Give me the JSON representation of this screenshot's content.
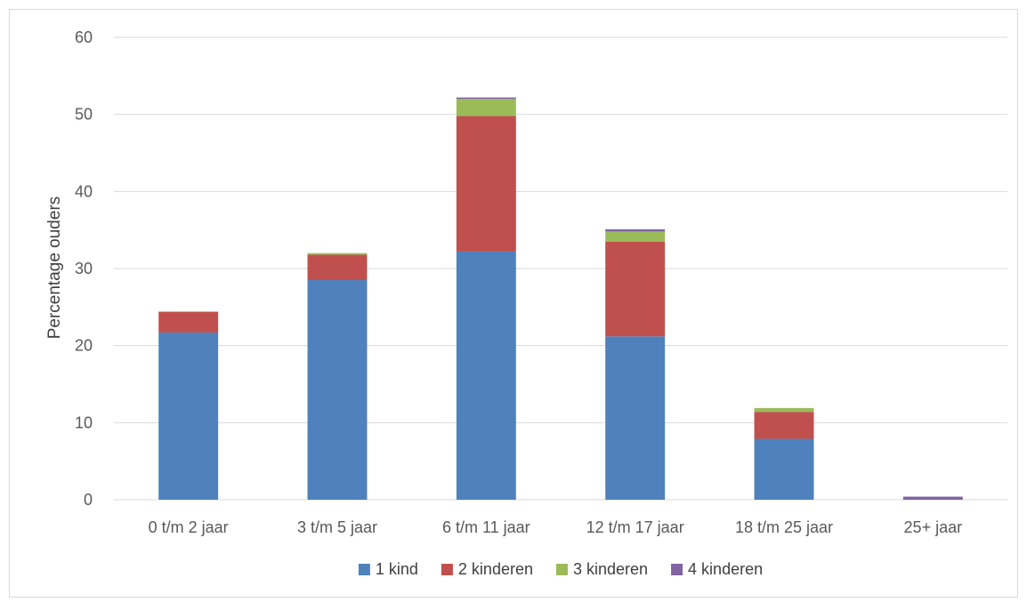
{
  "chart_data": {
    "type": "bar",
    "stacked": true,
    "title": "",
    "xlabel": "",
    "ylabel": "Percentage ouders",
    "ylim": [
      0,
      60
    ],
    "yticks": [
      0,
      10,
      20,
      30,
      40,
      50,
      60
    ],
    "grid": true,
    "legend_position": "bottom",
    "categories": [
      "0 t/m 2 jaar",
      "3 t/m 5 jaar",
      "6 t/m 11 jaar",
      "12 t/m 17 jaar",
      "18 t/m 25 jaar",
      "25+ jaar"
    ],
    "series": [
      {
        "name": "1 kind",
        "color": "#4f81bd",
        "values": [
          21.7,
          28.5,
          32.2,
          21.2,
          7.9,
          0
        ]
      },
      {
        "name": "2 kinderen",
        "color": "#c0504d",
        "values": [
          2.7,
          3.3,
          17.6,
          12.3,
          3.5,
          0
        ]
      },
      {
        "name": "3 kinderen",
        "color": "#9bbb59",
        "values": [
          0,
          0.2,
          2.2,
          1.3,
          0.5,
          0
        ]
      },
      {
        "name": "4 kinderen",
        "color": "#8064a2",
        "values": [
          0,
          0,
          0.2,
          0.3,
          0,
          0.4
        ]
      }
    ]
  }
}
